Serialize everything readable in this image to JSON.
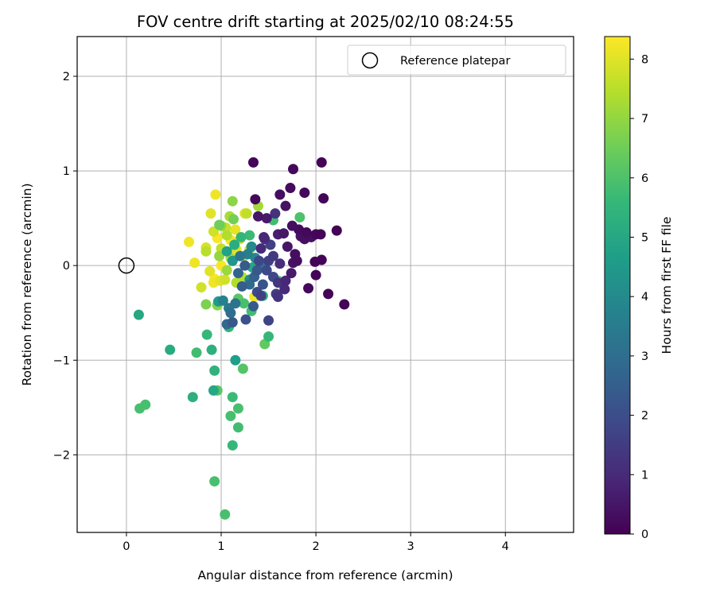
{
  "chart_data": {
    "type": "scatter",
    "title": "FOV centre drift starting at 2025/02/10 08:24:55",
    "xlabel": "Angular distance from reference (arcmin)",
    "ylabel": "Rotation from reference (arcmin)",
    "xlim": [
      -0.52,
      4.72
    ],
    "ylim": [
      -2.82,
      2.42
    ],
    "x_ticks": [
      0,
      1,
      2,
      3,
      4
    ],
    "y_ticks": [
      -2,
      -1,
      0,
      1,
      2
    ],
    "grid": true,
    "legend": {
      "placement": "top-right",
      "entries": [
        "Reference platepar"
      ]
    },
    "reference_point": {
      "x": 0,
      "y": 0,
      "label": "Reference platepar",
      "marker": "open-circle"
    },
    "colorbar": {
      "label": "Hours from first FF file",
      "colormap": "viridis",
      "range": [
        0,
        8.38
      ],
      "ticks": [
        0,
        1,
        2,
        3,
        4,
        5,
        6,
        7,
        8
      ]
    },
    "colormap_stops": [
      "#440154",
      "#482878",
      "#3e4989",
      "#31688e",
      "#26828e",
      "#1f9e89",
      "#35b779",
      "#6ece58",
      "#b5de2b",
      "#fde725"
    ],
    "points": [
      {
        "x": 1.34,
        "y": 1.09,
        "h": 0.1
      },
      {
        "x": 2.06,
        "y": 1.09,
        "h": 0.05
      },
      {
        "x": 1.76,
        "y": 1.02,
        "h": 0.2
      },
      {
        "x": 1.36,
        "y": 0.7,
        "h": 0.15
      },
      {
        "x": 1.62,
        "y": 0.75,
        "h": 0.3
      },
      {
        "x": 1.73,
        "y": 0.82,
        "h": 0.25
      },
      {
        "x": 1.88,
        "y": 0.77,
        "h": 0.2
      },
      {
        "x": 2.08,
        "y": 0.71,
        "h": 0.1
      },
      {
        "x": 1.68,
        "y": 0.63,
        "h": 0.4
      },
      {
        "x": 1.39,
        "y": 0.52,
        "h": 0.5
      },
      {
        "x": 1.48,
        "y": 0.5,
        "h": 0.6
      },
      {
        "x": 1.57,
        "y": 0.55,
        "h": 1.2
      },
      {
        "x": 1.75,
        "y": 0.42,
        "h": 0.3
      },
      {
        "x": 1.82,
        "y": 0.38,
        "h": 0.25
      },
      {
        "x": 1.9,
        "y": 0.35,
        "h": 0.2
      },
      {
        "x": 2.0,
        "y": 0.33,
        "h": 0.15
      },
      {
        "x": 2.05,
        "y": 0.33,
        "h": 0.1
      },
      {
        "x": 2.22,
        "y": 0.37,
        "h": 0.05
      },
      {
        "x": 1.95,
        "y": 0.3,
        "h": 0.35
      },
      {
        "x": 1.88,
        "y": 0.28,
        "h": 0.3
      },
      {
        "x": 1.84,
        "y": 0.31,
        "h": 0.4
      },
      {
        "x": 1.66,
        "y": 0.34,
        "h": 0.5
      },
      {
        "x": 1.6,
        "y": 0.33,
        "h": 0.7
      },
      {
        "x": 1.45,
        "y": 0.3,
        "h": 0.9
      },
      {
        "x": 1.52,
        "y": 0.22,
        "h": 1.6
      },
      {
        "x": 1.42,
        "y": 0.18,
        "h": 1.0
      },
      {
        "x": 1.7,
        "y": 0.2,
        "h": 0.5
      },
      {
        "x": 1.78,
        "y": 0.12,
        "h": 0.3
      },
      {
        "x": 1.8,
        "y": 0.05,
        "h": 0.3
      },
      {
        "x": 1.76,
        "y": 0.03,
        "h": 0.4
      },
      {
        "x": 1.99,
        "y": 0.04,
        "h": 0.1
      },
      {
        "x": 2.06,
        "y": 0.06,
        "h": 0.05
      },
      {
        "x": 2.0,
        "y": -0.1,
        "h": 0.1
      },
      {
        "x": 1.92,
        "y": -0.24,
        "h": 0.2
      },
      {
        "x": 2.13,
        "y": -0.3,
        "h": 0.05
      },
      {
        "x": 2.3,
        "y": -0.41,
        "h": 0.05
      },
      {
        "x": 1.74,
        "y": -0.08,
        "h": 0.6
      },
      {
        "x": 1.68,
        "y": -0.16,
        "h": 0.9
      },
      {
        "x": 1.67,
        "y": -0.25,
        "h": 1.0
      },
      {
        "x": 1.6,
        "y": -0.18,
        "h": 1.3
      },
      {
        "x": 1.55,
        "y": -0.12,
        "h": 1.8
      },
      {
        "x": 1.58,
        "y": -0.3,
        "h": 1.5
      },
      {
        "x": 1.6,
        "y": -0.33,
        "h": 1.2
      },
      {
        "x": 1.5,
        "y": -0.58,
        "h": 1.7
      },
      {
        "x": 1.44,
        "y": -0.2,
        "h": 2.2
      },
      {
        "x": 1.48,
        "y": -0.05,
        "h": 1.9
      },
      {
        "x": 1.5,
        "y": 0.05,
        "h": 1.6
      },
      {
        "x": 1.55,
        "y": 0.1,
        "h": 1.4
      },
      {
        "x": 1.62,
        "y": 0.02,
        "h": 1.1
      },
      {
        "x": 1.4,
        "y": 0.05,
        "h": 1.8
      },
      {
        "x": 1.38,
        "y": -0.05,
        "h": 2.3
      },
      {
        "x": 1.35,
        "y": -0.12,
        "h": 2.6
      },
      {
        "x": 1.3,
        "y": -0.2,
        "h": 2.9
      },
      {
        "x": 1.22,
        "y": -0.22,
        "h": 2.5
      },
      {
        "x": 1.18,
        "y": -0.08,
        "h": 2.7
      },
      {
        "x": 1.15,
        "y": -0.4,
        "h": 3.2
      },
      {
        "x": 1.1,
        "y": -0.5,
        "h": 3.0
      },
      {
        "x": 1.12,
        "y": -0.6,
        "h": 2.3
      },
      {
        "x": 1.06,
        "y": -0.62,
        "h": 2.8
      },
      {
        "x": 1.08,
        "y": -0.45,
        "h": 3.4
      },
      {
        "x": 1.02,
        "y": -0.37,
        "h": 3.7
      },
      {
        "x": 1.26,
        "y": -0.57,
        "h": 2.1
      },
      {
        "x": 1.34,
        "y": -0.43,
        "h": 2.4
      },
      {
        "x": 1.38,
        "y": -0.28,
        "h": 1.9
      },
      {
        "x": 1.42,
        "y": -0.32,
        "h": 1.6
      },
      {
        "x": 1.46,
        "y": 0.28,
        "h": 1.1
      },
      {
        "x": 1.25,
        "y": 0.0,
        "h": 2.4
      },
      {
        "x": 1.2,
        "y": 0.1,
        "h": 3.3
      },
      {
        "x": 1.28,
        "y": 0.12,
        "h": 3.6
      },
      {
        "x": 1.32,
        "y": 0.2,
        "h": 4.0
      },
      {
        "x": 1.36,
        "y": 0.08,
        "h": 3.9
      },
      {
        "x": 1.42,
        "y": -0.02,
        "h": 3.5
      },
      {
        "x": 1.12,
        "y": 0.05,
        "h": 4.4
      },
      {
        "x": 1.06,
        "y": 0.15,
        "h": 4.8
      },
      {
        "x": 1.14,
        "y": 0.22,
        "h": 5.2
      },
      {
        "x": 1.21,
        "y": 0.3,
        "h": 5.5
      },
      {
        "x": 1.3,
        "y": 0.32,
        "h": 5.7
      },
      {
        "x": 1.3,
        "y": -0.15,
        "h": 4.2
      },
      {
        "x": 1.33,
        "y": -0.02,
        "h": 5.0
      },
      {
        "x": 1.55,
        "y": 0.48,
        "h": 5.8
      },
      {
        "x": 1.83,
        "y": 0.51,
        "h": 6.0
      },
      {
        "x": 1.6,
        "y": -0.16,
        "h": 6.0
      },
      {
        "x": 1.44,
        "y": -0.32,
        "h": 5.4
      },
      {
        "x": 1.32,
        "y": -0.48,
        "h": 5.8
      },
      {
        "x": 1.24,
        "y": -0.4,
        "h": 5.9
      },
      {
        "x": 1.18,
        "y": -0.35,
        "h": 6.2
      },
      {
        "x": 1.08,
        "y": -0.65,
        "h": 5.5
      },
      {
        "x": 1.46,
        "y": -0.83,
        "h": 6.3
      },
      {
        "x": 1.5,
        "y": -0.75,
        "h": 5.6
      },
      {
        "x": 1.23,
        "y": -1.09,
        "h": 6.1
      },
      {
        "x": 1.15,
        "y": -1.0,
        "h": 4.7
      },
      {
        "x": 0.96,
        "y": -1.32,
        "h": 6.2
      },
      {
        "x": 0.92,
        "y": -1.32,
        "h": 5.0
      },
      {
        "x": 1.12,
        "y": -1.39,
        "h": 5.7
      },
      {
        "x": 1.18,
        "y": -1.51,
        "h": 5.9
      },
      {
        "x": 1.1,
        "y": -1.59,
        "h": 5.9
      },
      {
        "x": 1.18,
        "y": -1.71,
        "h": 5.8
      },
      {
        "x": 1.12,
        "y": -1.9,
        "h": 5.6
      },
      {
        "x": 0.93,
        "y": -2.28,
        "h": 5.9
      },
      {
        "x": 1.04,
        "y": -2.63,
        "h": 5.9
      },
      {
        "x": 0.93,
        "y": -1.11,
        "h": 5.4
      },
      {
        "x": 0.9,
        "y": -0.89,
        "h": 5.3
      },
      {
        "x": 0.85,
        "y": -0.73,
        "h": 5.6
      },
      {
        "x": 0.74,
        "y": -0.92,
        "h": 5.8
      },
      {
        "x": 0.7,
        "y": -1.39,
        "h": 5.3
      },
      {
        "x": 0.46,
        "y": -0.89,
        "h": 5.1
      },
      {
        "x": 0.13,
        "y": -0.52,
        "h": 5.0
      },
      {
        "x": 0.14,
        "y": -1.51,
        "h": 5.9
      },
      {
        "x": 0.2,
        "y": -1.47,
        "h": 5.9
      },
      {
        "x": 0.84,
        "y": -0.41,
        "h": 6.7
      },
      {
        "x": 0.96,
        "y": -0.42,
        "h": 6.8
      },
      {
        "x": 0.97,
        "y": -0.38,
        "h": 4.6
      },
      {
        "x": 0.94,
        "y": 0.75,
        "h": 8.2
      },
      {
        "x": 1.12,
        "y": 0.68,
        "h": 6.9
      },
      {
        "x": 1.39,
        "y": 0.63,
        "h": 7.2
      },
      {
        "x": 1.27,
        "y": 0.55,
        "h": 7.6
      },
      {
        "x": 1.25,
        "y": 0.55,
        "h": 8.0
      },
      {
        "x": 0.89,
        "y": 0.55,
        "h": 8.0
      },
      {
        "x": 1.09,
        "y": 0.52,
        "h": 7.3
      },
      {
        "x": 1.13,
        "y": 0.49,
        "h": 6.6
      },
      {
        "x": 1.0,
        "y": 0.42,
        "h": 7.0
      },
      {
        "x": 0.98,
        "y": 0.43,
        "h": 6.5
      },
      {
        "x": 1.05,
        "y": 0.4,
        "h": 7.7
      },
      {
        "x": 1.15,
        "y": 0.38,
        "h": 8.1
      },
      {
        "x": 0.92,
        "y": 0.36,
        "h": 7.8
      },
      {
        "x": 1.06,
        "y": 0.32,
        "h": 7.4
      },
      {
        "x": 1.2,
        "y": 0.28,
        "h": 7.9
      },
      {
        "x": 0.96,
        "y": 0.29,
        "h": 8.3
      },
      {
        "x": 1.1,
        "y": 0.27,
        "h": 8.2
      },
      {
        "x": 0.66,
        "y": 0.25,
        "h": 8.2
      },
      {
        "x": 0.84,
        "y": 0.19,
        "h": 7.9
      },
      {
        "x": 0.84,
        "y": 0.15,
        "h": 7.5
      },
      {
        "x": 1.0,
        "y": 0.18,
        "h": 7.6
      },
      {
        "x": 1.16,
        "y": 0.17,
        "h": 8.0
      },
      {
        "x": 1.3,
        "y": 0.17,
        "h": 7.7
      },
      {
        "x": 0.98,
        "y": 0.1,
        "h": 7.0
      },
      {
        "x": 1.1,
        "y": 0.08,
        "h": 7.3
      },
      {
        "x": 1.24,
        "y": 0.1,
        "h": 7.8
      },
      {
        "x": 0.72,
        "y": 0.03,
        "h": 8.2
      },
      {
        "x": 1.0,
        "y": 0.0,
        "h": 8.3
      },
      {
        "x": 1.06,
        "y": -0.05,
        "h": 7.1
      },
      {
        "x": 0.88,
        "y": -0.06,
        "h": 8.0
      },
      {
        "x": 0.93,
        "y": -0.14,
        "h": 8.3
      },
      {
        "x": 0.92,
        "y": -0.18,
        "h": 8.2
      },
      {
        "x": 1.04,
        "y": -0.15,
        "h": 7.8
      },
      {
        "x": 0.99,
        "y": -0.16,
        "h": 8.0
      },
      {
        "x": 1.16,
        "y": -0.18,
        "h": 7.4
      },
      {
        "x": 1.22,
        "y": -0.12,
        "h": 7.5
      },
      {
        "x": 0.79,
        "y": -0.23,
        "h": 7.8
      },
      {
        "x": 1.35,
        "y": -0.33,
        "h": 8.2
      }
    ]
  }
}
